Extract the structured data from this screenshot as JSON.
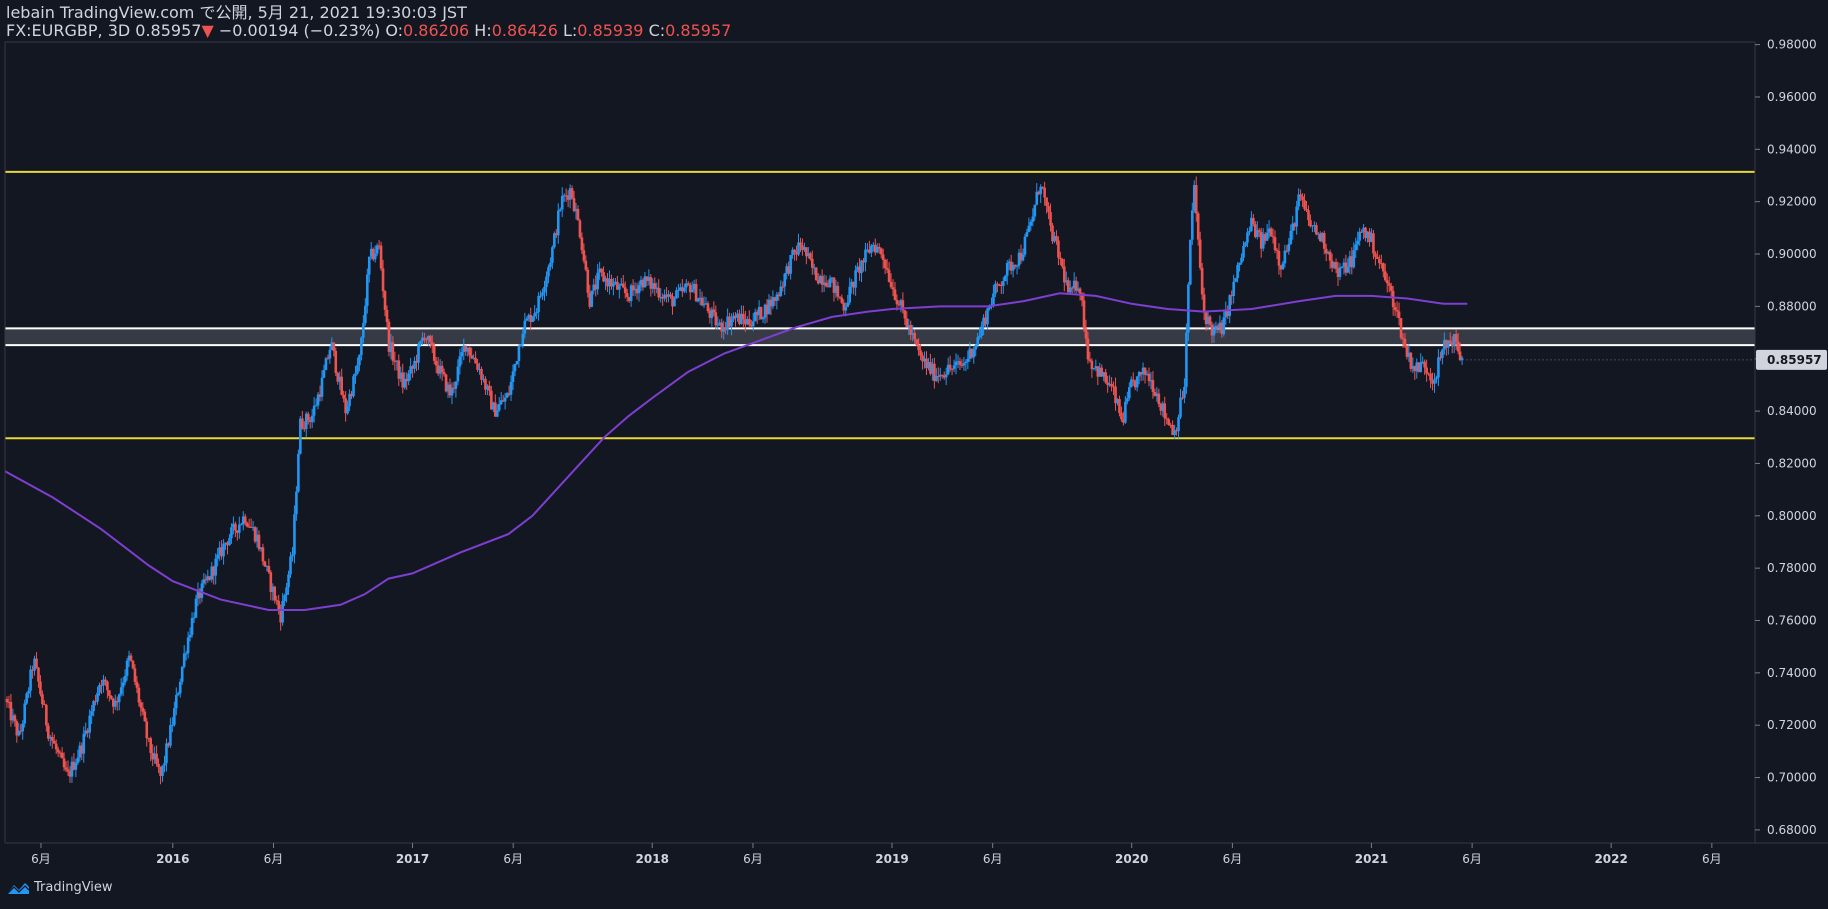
{
  "header": {
    "line1": "lebain TradingView.com で公開, 5月 21, 2021 19:30:03 JST",
    "symbol": "FX:EURGBP, 3D",
    "last": "0.85957",
    "change_arrow": "▼",
    "change": "−0.00194 (−0.23%)",
    "o_label": "O:",
    "o_value": "0.86206",
    "h_label": "H:",
    "h_value": "0.86426",
    "l_label": "L:",
    "l_value": "0.85939",
    "c_label": "C:",
    "c_value": "0.85957"
  },
  "footer": {
    "brand": "TradingView"
  },
  "colors": {
    "background": "#131722",
    "bull": "#2196f3",
    "bear": "#ef5350",
    "ma": "#7e3fd1",
    "support_resistance": "#e8d738",
    "zone_line": "#ffffff",
    "grid": "#2a2e39",
    "price_tag_bg": "#d1d4dc"
  },
  "chart_data": {
    "type": "candlestick",
    "title": "FX:EURGBP, 3D",
    "y_range": [
      0.675,
      0.981
    ],
    "y_ticks": [
      "0.98000",
      "0.96000",
      "0.94000",
      "0.92000",
      "0.90000",
      "0.88000",
      "0.86000",
      "0.84000",
      "0.82000",
      "0.80000",
      "0.78000",
      "0.76000",
      "0.74000",
      "0.72000",
      "0.70000",
      "0.68000"
    ],
    "x_range": [
      2015.3,
      2022.6
    ],
    "x_ticks": [
      {
        "t": 2015.45,
        "label": "6月",
        "bold": false
      },
      {
        "t": 2016.0,
        "label": "2016",
        "bold": true
      },
      {
        "t": 2016.42,
        "label": "6月",
        "bold": false
      },
      {
        "t": 2017.0,
        "label": "2017",
        "bold": true
      },
      {
        "t": 2017.42,
        "label": "6月",
        "bold": false
      },
      {
        "t": 2018.0,
        "label": "2018",
        "bold": true
      },
      {
        "t": 2018.42,
        "label": "6月",
        "bold": false
      },
      {
        "t": 2019.0,
        "label": "2019",
        "bold": true
      },
      {
        "t": 2019.42,
        "label": "6月",
        "bold": false
      },
      {
        "t": 2020.0,
        "label": "2020",
        "bold": true
      },
      {
        "t": 2020.42,
        "label": "6月",
        "bold": false
      },
      {
        "t": 2021.0,
        "label": "2021",
        "bold": true
      },
      {
        "t": 2021.42,
        "label": "6月",
        "bold": false
      },
      {
        "t": 2022.0,
        "label": "2022",
        "bold": true
      },
      {
        "t": 2022.42,
        "label": "6月",
        "bold": false
      }
    ],
    "price_path": [
      [
        2015.3,
        0.73
      ],
      [
        2015.36,
        0.715
      ],
      [
        2015.42,
        0.745
      ],
      [
        2015.48,
        0.718
      ],
      [
        2015.56,
        0.7
      ],
      [
        2015.62,
        0.712
      ],
      [
        2015.7,
        0.738
      ],
      [
        2015.76,
        0.728
      ],
      [
        2015.82,
        0.746
      ],
      [
        2015.9,
        0.712
      ],
      [
        2015.95,
        0.7
      ],
      [
        2016.0,
        0.722
      ],
      [
        2016.05,
        0.748
      ],
      [
        2016.1,
        0.768
      ],
      [
        2016.16,
        0.778
      ],
      [
        2016.22,
        0.79
      ],
      [
        2016.3,
        0.8
      ],
      [
        2016.35,
        0.792
      ],
      [
        2016.4,
        0.776
      ],
      [
        2016.45,
        0.762
      ],
      [
        2016.5,
        0.786
      ],
      [
        2016.53,
        0.835
      ],
      [
        2016.58,
        0.838
      ],
      [
        2016.62,
        0.85
      ],
      [
        2016.66,
        0.866
      ],
      [
        2016.72,
        0.84
      ],
      [
        2016.78,
        0.86
      ],
      [
        2016.82,
        0.898
      ],
      [
        2016.86,
        0.903
      ],
      [
        2016.9,
        0.866
      ],
      [
        2016.96,
        0.85
      ],
      [
        2017.0,
        0.856
      ],
      [
        2017.05,
        0.87
      ],
      [
        2017.1,
        0.858
      ],
      [
        2017.16,
        0.846
      ],
      [
        2017.22,
        0.866
      ],
      [
        2017.28,
        0.856
      ],
      [
        2017.34,
        0.84
      ],
      [
        2017.4,
        0.846
      ],
      [
        2017.46,
        0.872
      ],
      [
        2017.52,
        0.88
      ],
      [
        2017.58,
        0.9
      ],
      [
        2017.62,
        0.92
      ],
      [
        2017.66,
        0.925
      ],
      [
        2017.7,
        0.908
      ],
      [
        2017.74,
        0.882
      ],
      [
        2017.78,
        0.892
      ],
      [
        2017.84,
        0.888
      ],
      [
        2017.9,
        0.884
      ],
      [
        2017.96,
        0.89
      ],
      [
        2018.0,
        0.888
      ],
      [
        2018.08,
        0.882
      ],
      [
        2018.16,
        0.888
      ],
      [
        2018.22,
        0.88
      ],
      [
        2018.28,
        0.872
      ],
      [
        2018.34,
        0.876
      ],
      [
        2018.4,
        0.874
      ],
      [
        2018.46,
        0.878
      ],
      [
        2018.52,
        0.884
      ],
      [
        2018.58,
        0.898
      ],
      [
        2018.62,
        0.904
      ],
      [
        2018.68,
        0.892
      ],
      [
        2018.74,
        0.89
      ],
      [
        2018.8,
        0.88
      ],
      [
        2018.86,
        0.894
      ],
      [
        2018.92,
        0.904
      ],
      [
        2018.96,
        0.9
      ],
      [
        2019.0,
        0.888
      ],
      [
        2019.06,
        0.874
      ],
      [
        2019.12,
        0.86
      ],
      [
        2019.18,
        0.854
      ],
      [
        2019.24,
        0.856
      ],
      [
        2019.3,
        0.858
      ],
      [
        2019.36,
        0.868
      ],
      [
        2019.42,
        0.884
      ],
      [
        2019.48,
        0.894
      ],
      [
        2019.54,
        0.9
      ],
      [
        2019.58,
        0.912
      ],
      [
        2019.62,
        0.928
      ],
      [
        2019.66,
        0.91
      ],
      [
        2019.7,
        0.898
      ],
      [
        2019.74,
        0.884
      ],
      [
        2019.78,
        0.89
      ],
      [
        2019.82,
        0.86
      ],
      [
        2019.88,
        0.853
      ],
      [
        2019.92,
        0.848
      ],
      [
        2019.96,
        0.836
      ],
      [
        2020.0,
        0.85
      ],
      [
        2020.06,
        0.855
      ],
      [
        2020.1,
        0.848
      ],
      [
        2020.14,
        0.838
      ],
      [
        2020.18,
        0.832
      ],
      [
        2020.22,
        0.85
      ],
      [
        2020.24,
        0.896
      ],
      [
        2020.26,
        0.928
      ],
      [
        2020.28,
        0.9
      ],
      [
        2020.3,
        0.878
      ],
      [
        2020.34,
        0.87
      ],
      [
        2020.38,
        0.872
      ],
      [
        2020.42,
        0.886
      ],
      [
        2020.46,
        0.9
      ],
      [
        2020.5,
        0.912
      ],
      [
        2020.54,
        0.904
      ],
      [
        2020.58,
        0.91
      ],
      [
        2020.62,
        0.896
      ],
      [
        2020.66,
        0.905
      ],
      [
        2020.7,
        0.922
      ],
      [
        2020.74,
        0.912
      ],
      [
        2020.8,
        0.905
      ],
      [
        2020.86,
        0.892
      ],
      [
        2020.92,
        0.898
      ],
      [
        2020.96,
        0.91
      ],
      [
        2021.0,
        0.905
      ],
      [
        2021.04,
        0.895
      ],
      [
        2021.1,
        0.88
      ],
      [
        2021.14,
        0.864
      ],
      [
        2021.18,
        0.856
      ],
      [
        2021.22,
        0.858
      ],
      [
        2021.26,
        0.852
      ],
      [
        2021.3,
        0.864
      ],
      [
        2021.34,
        0.868
      ],
      [
        2021.38,
        0.859
      ]
    ],
    "moving_average": [
      [
        2015.3,
        0.817
      ],
      [
        2015.5,
        0.807
      ],
      [
        2015.7,
        0.795
      ],
      [
        2015.9,
        0.781
      ],
      [
        2016.0,
        0.775
      ],
      [
        2016.2,
        0.768
      ],
      [
        2016.4,
        0.764
      ],
      [
        2016.55,
        0.764
      ],
      [
        2016.7,
        0.766
      ],
      [
        2016.8,
        0.77
      ],
      [
        2016.9,
        0.776
      ],
      [
        2017.0,
        0.778
      ],
      [
        2017.2,
        0.786
      ],
      [
        2017.4,
        0.793
      ],
      [
        2017.5,
        0.8
      ],
      [
        2017.6,
        0.81
      ],
      [
        2017.7,
        0.82
      ],
      [
        2017.8,
        0.83
      ],
      [
        2017.9,
        0.838
      ],
      [
        2018.0,
        0.845
      ],
      [
        2018.15,
        0.855
      ],
      [
        2018.3,
        0.862
      ],
      [
        2018.45,
        0.867
      ],
      [
        2018.6,
        0.872
      ],
      [
        2018.75,
        0.876
      ],
      [
        2018.9,
        0.878
      ],
      [
        2019.0,
        0.879
      ],
      [
        2019.2,
        0.88
      ],
      [
        2019.4,
        0.88
      ],
      [
        2019.55,
        0.882
      ],
      [
        2019.7,
        0.885
      ],
      [
        2019.85,
        0.884
      ],
      [
        2020.0,
        0.881
      ],
      [
        2020.15,
        0.879
      ],
      [
        2020.3,
        0.878
      ],
      [
        2020.5,
        0.879
      ],
      [
        2020.7,
        0.882
      ],
      [
        2020.85,
        0.884
      ],
      [
        2021.0,
        0.884
      ],
      [
        2021.15,
        0.883
      ],
      [
        2021.3,
        0.881
      ],
      [
        2021.4,
        0.881
      ]
    ],
    "horizontal_lines": [
      {
        "name": "resistance",
        "price": 0.9314,
        "color": "#e8d738"
      },
      {
        "name": "support",
        "price": 0.8296,
        "color": "#e8d738"
      }
    ],
    "zone": {
      "top": 0.8716,
      "bottom": 0.8652
    },
    "last_price": 0.85957,
    "last_price_label": "0.85957"
  }
}
